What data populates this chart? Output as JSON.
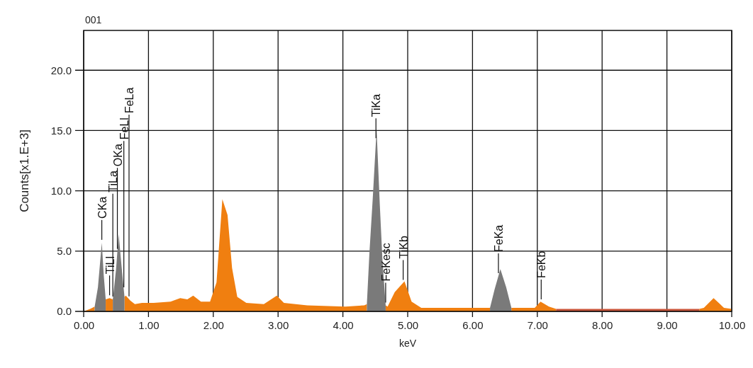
{
  "chart_data": {
    "type": "area",
    "title": "001",
    "xlabel": "keV",
    "ylabel": "Counts[x1.E+3]",
    "xlim": [
      0,
      10
    ],
    "ylim": [
      0,
      23.3
    ],
    "xticks": [
      {
        "value": 0,
        "label": "0.00"
      },
      {
        "value": 1,
        "label": "1.00"
      },
      {
        "value": 2,
        "label": "2.00"
      },
      {
        "value": 3,
        "label": "3.00"
      },
      {
        "value": 4,
        "label": "4.00"
      },
      {
        "value": 5,
        "label": "5.00"
      },
      {
        "value": 6,
        "label": "6.00"
      },
      {
        "value": 7,
        "label": "7.00"
      },
      {
        "value": 8,
        "label": "8.00"
      },
      {
        "value": 9,
        "label": "9.00"
      },
      {
        "value": 10,
        "label": "10.00"
      }
    ],
    "yticks": [
      {
        "value": 0,
        "label": "0.0"
      },
      {
        "value": 5,
        "label": "5.0"
      },
      {
        "value": 10,
        "label": "10.0"
      },
      {
        "value": 15,
        "label": "15.0"
      },
      {
        "value": 20,
        "label": "20.0"
      }
    ],
    "grid": true,
    "series": [
      {
        "color": "#f07f10",
        "x": [
          0,
          0.1,
          0.17,
          0.28,
          0.34,
          0.4,
          0.45,
          0.54,
          0.63,
          0.65,
          0.72,
          0.79,
          0.9,
          1.08,
          1.34,
          1.49,
          1.6,
          1.69,
          1.81,
          1.95,
          2.05,
          2.14,
          2.22,
          2.29,
          2.37,
          2.51,
          2.78,
          2.98,
          3.09,
          3.45,
          4.04,
          4.33,
          4.37,
          4.52,
          4.66,
          4.69,
          4.8,
          4.95,
          5.06,
          5.21,
          6.27,
          6.43,
          6.6,
          6.96,
          7.05,
          7.18,
          7.29,
          8.0,
          9.5,
          9.57,
          9.72,
          9.88,
          10
        ],
        "values": [
          0,
          0.2,
          0.4,
          null,
          1.0,
          1.1,
          1.0,
          null,
          1.2,
          1.3,
          0.9,
          0.6,
          0.7,
          0.7,
          0.8,
          1.1,
          1.0,
          1.3,
          0.8,
          0.8,
          2.4,
          9.3,
          8.0,
          3.6,
          1.2,
          0.7,
          0.6,
          1.3,
          0.7,
          0.5,
          0.4,
          0.5,
          0.6,
          null,
          0.5,
          0.4,
          1.6,
          2.5,
          0.8,
          0.3,
          0.3,
          null,
          0.3,
          0.3,
          0.8,
          0.4,
          0.2,
          null,
          0.2,
          0.3,
          1.1,
          0.3,
          0.2
        ]
      },
      {
        "color": "#7a7a7a",
        "x": [
          0.17,
          0.22,
          0.28,
          0.31,
          0.34,
          0.4,
          0.45,
          0.5,
          0.54,
          0.58,
          0.63,
          2.0,
          4.37,
          4.41,
          4.46,
          4.52,
          4.57,
          4.61,
          4.66,
          5.5,
          6.27,
          6.34,
          6.43,
          6.52,
          6.6
        ],
        "values": [
          0.4,
          2.0,
          5.7,
          3.0,
          1.0,
          null,
          1.0,
          3.5,
          6.4,
          4.0,
          1.2,
          null,
          0.6,
          4.9,
          9.3,
          15.1,
          8.8,
          4.3,
          0.5,
          null,
          0.3,
          1.8,
          3.5,
          2.0,
          0.3
        ]
      },
      {
        "color": "#c8553a",
        "x": [
          7.29,
          8.5,
          9.5
        ],
        "values": [
          0.2,
          0.2,
          0.2
        ]
      }
    ],
    "annotations": [
      {
        "text": "CKa",
        "x": 0.28
      },
      {
        "text": "TiLl",
        "x": 0.4
      },
      {
        "text": "TiLa",
        "x": 0.45
      },
      {
        "text": "OKa",
        "x": 0.52
      },
      {
        "text": "FeLl",
        "x": 0.62
      },
      {
        "text": "FeLa",
        "x": 0.7
      },
      {
        "text": "TiKa",
        "x": 4.51
      },
      {
        "text": "FeKesc",
        "x": 4.66
      },
      {
        "text": "TiKb",
        "x": 4.93
      },
      {
        "text": "FeKa",
        "x": 6.4
      },
      {
        "text": "FeKb",
        "x": 7.06
      }
    ]
  }
}
